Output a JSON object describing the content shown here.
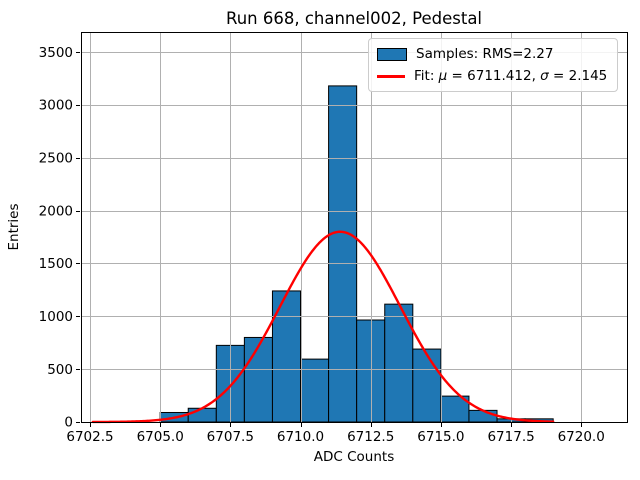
{
  "chart_data": {
    "type": "histogram",
    "title": "Run 668, channel002, Pedestal",
    "xlabel": "ADC Counts",
    "ylabel": "Entries",
    "bins": {
      "edges": [
        6705,
        6706,
        6707,
        6708,
        6709,
        6710,
        6711,
        6712,
        6713,
        6714,
        6715,
        6716,
        6717,
        6718,
        6719
      ],
      "counts": [
        90,
        130,
        725,
        800,
        1240,
        595,
        3180,
        965,
        1115,
        690,
        245,
        110,
        30,
        30
      ]
    },
    "fit": {
      "mu": 6711.412,
      "sigma": 2.145,
      "peak_height": 1800,
      "x_start": 6702.6,
      "x_end": 6719.0
    },
    "axes": {
      "xlim": [
        6702.18,
        6721.63
      ],
      "ylim": [
        0,
        3690
      ],
      "grid": true,
      "xticks": {
        "values": [
          6702.5,
          6705.0,
          6707.5,
          6710.0,
          6712.5,
          6715.0,
          6717.5,
          6720.0
        ],
        "labels": [
          "6702.5",
          "6705.0",
          "6707.5",
          "6710.0",
          "6712.5",
          "6715.0",
          "6717.5",
          "6720.0"
        ]
      },
      "yticks": {
        "values": [
          0,
          500,
          1000,
          1500,
          2000,
          2500,
          3000,
          3500
        ],
        "labels": [
          "0",
          "500",
          "1000",
          "1500",
          "2000",
          "2500",
          "3000",
          "3500"
        ]
      }
    },
    "legend": {
      "position": "upper right",
      "samples_label": "Samples: RMS=2.27",
      "fit_label_parts": {
        "prefix": "Fit: ",
        "mu_symbol": "μ",
        "mu_value": " = 6711.412, ",
        "sigma_symbol": "σ",
        "sigma_value": " = 2.145"
      }
    },
    "colors": {
      "bar_fill": "#1f77b4",
      "bar_edge": "#000000",
      "fit_line": "#ff0000",
      "grid": "#b0b0b0",
      "spine": "#000000",
      "background": "#ffffff",
      "legend_border": "#cccccc"
    }
  }
}
